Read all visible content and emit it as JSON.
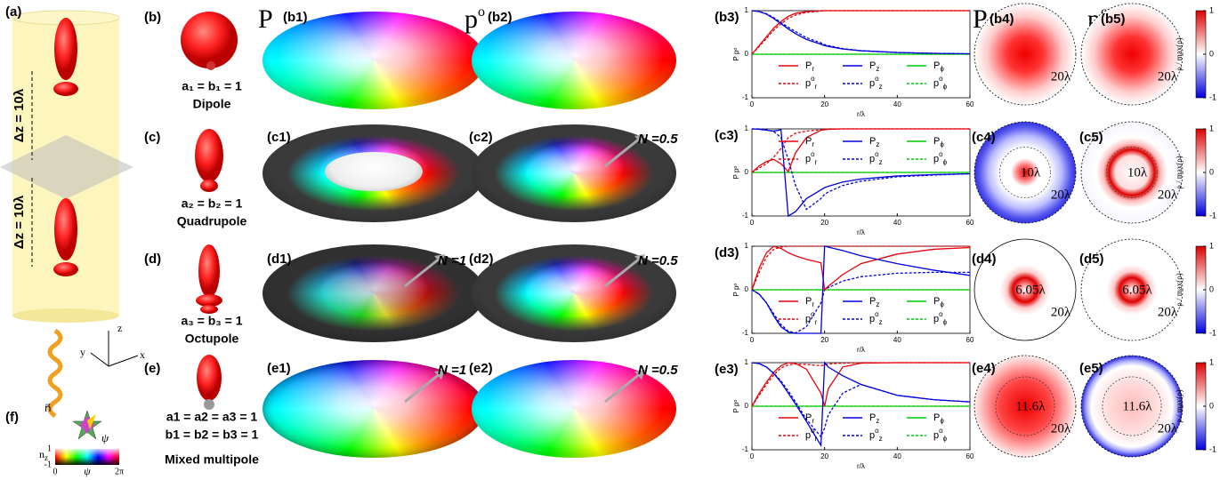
{
  "panel_a": {
    "label": "(a)",
    "spacing": [
      "Δz = 10λ",
      "Δz = 10λ"
    ],
    "axes": {
      "z": "z",
      "y": "y",
      "x": "x"
    }
  },
  "panel_f": {
    "label": "(f)",
    "vector": "n⃗",
    "psi": "ψ",
    "nz": {
      "text": "n",
      "sub": "z"
    },
    "nz_ticks": [
      1,
      -1
    ],
    "psi_ticks": [
      0,
      {
        "value": 6.283,
        "label": "2π"
      }
    ],
    "psi_axis": "ψ"
  },
  "headers": {
    "total": "P",
    "partial": "p",
    "partial_sup": "o"
  },
  "plot_axes": {
    "type": "line",
    "x": [
      0,
      2,
      4,
      6,
      8,
      10,
      12,
      15,
      19,
      20,
      21,
      25,
      30,
      40,
      50,
      60
    ],
    "xlim": [
      0,
      60
    ],
    "ylim": [
      -1,
      1
    ],
    "xticks": [
      0,
      20,
      40,
      60
    ],
    "yticks": [
      -1,
      0,
      1
    ],
    "xlabel": "r/λ",
    "ylabel": "P  pᵒ"
  },
  "plot_series": [
    {
      "name": "P",
      "sub": "r",
      "color": "#e8000b"
    },
    {
      "name": "P",
      "sub": "z",
      "color": "#0000dd"
    },
    {
      "name": "P",
      "sub": "ϕ",
      "color": "#00cc00"
    },
    {
      "name": "p",
      "sup": "o",
      "sub": "r",
      "color": "#e8000b",
      "dashed": true
    },
    {
      "name": "p",
      "sup": "o",
      "sub": "z",
      "color": "#0000dd",
      "dashed": true
    },
    {
      "name": "p",
      "sup": "o",
      "sub": "ϕ",
      "color": "#00cc00",
      "dashed": true
    }
  ],
  "colorbar": {
    "label": "ρ / max(ρ)",
    "ticks": [
      1,
      0,
      -1
    ],
    "lim": [
      -1,
      1
    ]
  },
  "rows": [
    {
      "label": "(b)",
      "lines": [
        "a₁ = b₁ = 1",
        "Dipole"
      ],
      "disks": [
        {
          "label": "(b1)"
        },
        {
          "label": "(b2)"
        }
      ],
      "plot": {
        "label": "(b3)",
        "values": [
          [
            0,
            0.2,
            0.4,
            0.6,
            0.75,
            0.87,
            0.94,
            0.98,
            1,
            1,
            1,
            1,
            1,
            1,
            1,
            1
          ],
          [
            1,
            0.98,
            0.92,
            0.82,
            0.7,
            0.58,
            0.47,
            0.34,
            0.23,
            0.2,
            0.18,
            0.12,
            0.08,
            0.04,
            0.02,
            0.01
          ],
          [
            0,
            0,
            0,
            0,
            0,
            0,
            0,
            0,
            0,
            0,
            0,
            0,
            0,
            0,
            0,
            0
          ],
          [
            0,
            0.18,
            0.36,
            0.55,
            0.7,
            0.82,
            0.9,
            0.96,
            0.99,
            1,
            1,
            1,
            1,
            1,
            1,
            1
          ],
          [
            1,
            0.98,
            0.93,
            0.84,
            0.73,
            0.62,
            0.52,
            0.38,
            0.26,
            0.22,
            0.2,
            0.13,
            0.08,
            0.04,
            0.02,
            0.01
          ],
          [
            0,
            0,
            0,
            0,
            0,
            0,
            0,
            0,
            0,
            0,
            0,
            0,
            0,
            0,
            0,
            0
          ]
        ]
      },
      "maps": [
        {
          "label": "(b4)",
          "outer": "20λ"
        },
        {
          "label": "(b5)",
          "outer": "20λ"
        }
      ]
    },
    {
      "label": "(c)",
      "lines": [
        "a₂ = b₂ = 1",
        "Quadrupole"
      ],
      "disks": [
        {
          "label": "(c1)"
        },
        {
          "label": "(c2)",
          "note": "N =0.5"
        }
      ],
      "plot": {
        "label": "(c3)",
        "values": [
          [
            0,
            0.15,
            0.25,
            0.3,
            0.2,
            0.02,
            0.45,
            0.8,
            0.97,
            0.98,
            0.99,
            1,
            1,
            1,
            1,
            1
          ],
          [
            1,
            0.99,
            0.97,
            0.95,
            0.98,
            -1,
            -0.9,
            -0.6,
            -0.4,
            -0.35,
            -0.32,
            -0.22,
            -0.15,
            -0.08,
            -0.05,
            -0.03
          ],
          [
            0,
            0,
            0,
            0,
            0,
            0,
            0,
            0,
            0,
            0,
            0,
            0,
            0,
            0,
            0,
            0
          ],
          [
            0,
            0.1,
            0.2,
            0.35,
            0.55,
            0.8,
            0.9,
            0.95,
            0.98,
            0.99,
            1,
            1,
            1,
            1,
            1,
            1
          ],
          [
            1,
            1,
            0.98,
            0.94,
            0.8,
            0.3,
            -0.3,
            -0.85,
            -0.6,
            -0.5,
            -0.45,
            -0.3,
            -0.2,
            -0.1,
            -0.06,
            -0.03
          ],
          [
            0,
            0,
            0,
            0,
            0,
            0,
            0,
            0,
            0,
            0,
            0,
            0,
            0,
            0,
            0,
            0
          ]
        ]
      },
      "maps": [
        {
          "label": "(c4)",
          "outer": "20λ",
          "inner": "10λ"
        },
        {
          "label": "(c5)",
          "outer": "20λ",
          "inner": "10λ"
        }
      ]
    },
    {
      "label": "(d)",
      "lines": [
        "a₃ = b₃ = 1",
        "Octupole"
      ],
      "disks": [
        {
          "label": "(d1)",
          "note": "N =1"
        },
        {
          "label": "(d2)",
          "note": "N =0.5"
        }
      ],
      "plot": {
        "label": "(d3)",
        "values": [
          [
            0,
            0.5,
            0.85,
            1,
            0.95,
            0.85,
            0.78,
            0.7,
            0.62,
            0,
            0.08,
            0.35,
            0.6,
            0.82,
            0.93,
            0.97
          ],
          [
            0,
            -0.1,
            -0.3,
            -0.6,
            -0.85,
            -0.97,
            -1,
            -1,
            -1,
            1,
            0.98,
            0.9,
            0.78,
            0.6,
            0.45,
            0.33
          ],
          [
            0,
            0,
            0,
            0,
            0,
            0,
            0,
            0,
            0,
            0,
            0,
            0,
            0,
            0,
            0,
            0
          ],
          [
            0,
            0.4,
            0.75,
            0.93,
            0.98,
            1,
            1,
            1,
            1,
            1,
            1,
            1,
            1,
            1,
            1,
            1
          ],
          [
            0,
            -0.1,
            -0.3,
            -0.55,
            -0.8,
            -0.95,
            -0.99,
            -0.85,
            -0.3,
            0,
            0.05,
            0.2,
            0.3,
            0.38,
            0.4,
            0.4
          ],
          [
            0,
            0,
            0,
            0,
            0,
            0,
            0,
            0,
            0,
            0,
            0,
            0,
            0,
            0,
            0,
            0
          ]
        ]
      },
      "maps": [
        {
          "label": "(d4)",
          "outer": "20λ",
          "inner": "6.05λ"
        },
        {
          "label": "(d5)",
          "outer": "20λ",
          "inner": "6.05λ"
        }
      ]
    },
    {
      "label": "(e)",
      "lines": [
        "a1 = a2 = a3 = 1",
        "b1 = b2 = b3 = 1",
        "Mixed multipole"
      ],
      "disks": [
        {
          "label": "(e1)",
          "note": "N =1"
        },
        {
          "label": "(e2)",
          "note": "N =0.5"
        }
      ],
      "plot": {
        "label": "(e3)",
        "values": [
          [
            0,
            0.3,
            0.55,
            0.78,
            0.93,
            1,
            0.98,
            0.85,
            0.3,
            0,
            0.4,
            0.9,
            0.99,
            1,
            1,
            1
          ],
          [
            1,
            0.98,
            0.9,
            0.75,
            0.55,
            0.3,
            0.05,
            -0.35,
            -0.9,
            1,
            0.9,
            0.7,
            0.5,
            0.25,
            0.15,
            0.1
          ],
          [
            0,
            0,
            0,
            0,
            0,
            0,
            0,
            0,
            0,
            0,
            0,
            0,
            0,
            0,
            0,
            0
          ],
          [
            0,
            0.25,
            0.5,
            0.72,
            0.88,
            0.95,
            0.97,
            0.96,
            0.93,
            0.95,
            0.97,
            0.99,
            1,
            1,
            1,
            1
          ],
          [
            1,
            0.98,
            0.9,
            0.76,
            0.58,
            0.35,
            0.1,
            -0.3,
            -0.7,
            -0.5,
            -0.2,
            0.3,
            0.5,
            0.25,
            0.15,
            0.1
          ],
          [
            0,
            0,
            0,
            0,
            0,
            0,
            0,
            0,
            0,
            0,
            0,
            0,
            0,
            0,
            0,
            0
          ]
        ]
      },
      "maps": [
        {
          "label": "(e4)",
          "outer": "20λ",
          "inner": "11.6λ"
        },
        {
          "label": "(e5)",
          "outer": "20λ",
          "inner": "11.6λ"
        }
      ]
    }
  ]
}
